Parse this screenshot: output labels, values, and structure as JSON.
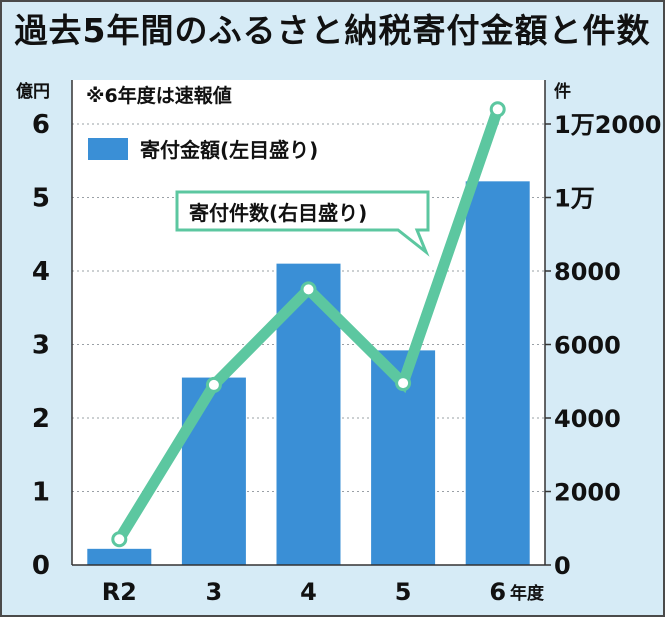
{
  "title": "過去5年間のふるさと納税寄付金額と件数",
  "note": "※6年度は速報値",
  "left_unit": "億円",
  "right_unit": "件",
  "x_unit": "年度",
  "colors": {
    "bar": "#3a8fd6",
    "line": "#5cc7a0",
    "background": "#d6ebf6",
    "plot": "#ffffff"
  },
  "chart_data": {
    "type": "bar",
    "categories": [
      "R2",
      "3",
      "4",
      "5",
      "6"
    ],
    "series": [
      {
        "name": "寄付金額(左目盛り)",
        "type": "bar",
        "axis": "left",
        "values": [
          0.22,
          2.55,
          4.1,
          2.92,
          5.22
        ]
      },
      {
        "name": "寄付件数(右目盛り)",
        "type": "line",
        "axis": "right",
        "values": [
          700,
          4900,
          7500,
          4950,
          12400
        ]
      }
    ],
    "left_axis": {
      "ylim": [
        0,
        6
      ],
      "ticks": [
        "0",
        "1",
        "2",
        "3",
        "4",
        "5",
        "6"
      ],
      "tick_values": [
        0,
        1,
        2,
        3,
        4,
        5,
        6
      ]
    },
    "right_axis": {
      "ylim": [
        0,
        12000
      ],
      "ticks": [
        "0",
        "2000",
        "4000",
        "6000",
        "8000",
        "1万",
        "1万2000"
      ],
      "tick_values": [
        0,
        2000,
        4000,
        6000,
        8000,
        10000,
        12000
      ]
    },
    "grid": true,
    "legend": "top-left"
  }
}
